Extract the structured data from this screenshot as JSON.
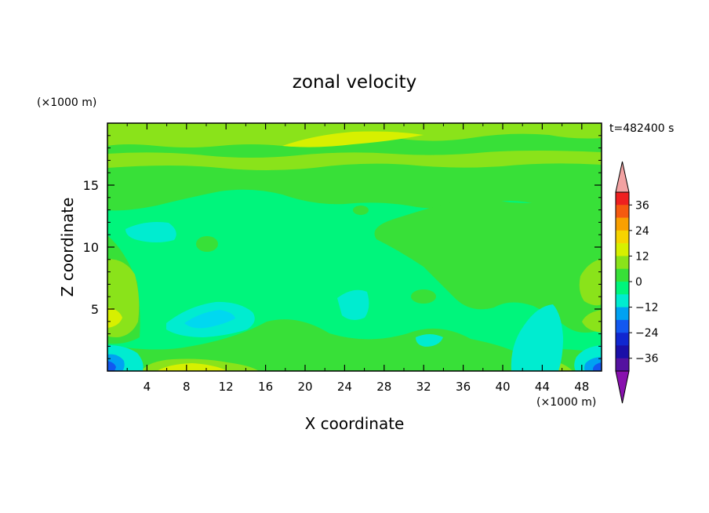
{
  "chart_data": {
    "type": "heatmap",
    "title": "zonal velocity",
    "xlabel": "X coordinate",
    "ylabel": "Z coordinate",
    "x_unit": "(×1000 m)",
    "y_unit": "(×1000 m)",
    "time_label": "t=482400 s",
    "xlim": [
      0,
      50
    ],
    "ylim": [
      0,
      20
    ],
    "x_ticks": [
      4,
      8,
      12,
      16,
      20,
      24,
      28,
      32,
      36,
      40,
      44,
      48
    ],
    "y_ticks": [
      5,
      10,
      15
    ],
    "colorbar": {
      "levels": [
        -42,
        -36,
        -30,
        -24,
        -18,
        -12,
        -6,
        0,
        6,
        12,
        18,
        24,
        30,
        36,
        42
      ],
      "tick_values": [
        36,
        24,
        12,
        0,
        -12,
        -24,
        -36
      ],
      "tick_labels": [
        "36",
        "24",
        "12",
        "0",
        "−12",
        "−24",
        "−36"
      ],
      "colors_high_to_low": [
        "#ee2020",
        "#f55a10",
        "#f9a000",
        "#f6d400",
        "#d7f000",
        "#8ae31a",
        "#38e038",
        "#00f57c",
        "#00ecd0",
        "#00a2f2",
        "#1258f0",
        "#1027d0",
        "#1a0fa8",
        "#5412a0"
      ],
      "over_color": "#f2a2a2",
      "under_color": "#8810ae"
    },
    "field_summary": [
      {
        "region": "top layer (z 17–20)",
        "x_range": [
          0,
          50
        ],
        "value_range": [
          6,
          12
        ]
      },
      {
        "region": "upper band (z 13–17)",
        "x_range": [
          0,
          50
        ],
        "value_range": [
          0,
          6
        ]
      },
      {
        "region": "interior (z 3–13)",
        "x_range": [
          4,
          34
        ],
        "value_range": [
          -6,
          0
        ]
      },
      {
        "region": "cyan patch",
        "x_range": [
          6,
          13
        ],
        "value_range": [
          -12,
          -6
        ]
      },
      {
        "region": "right interior (z 5–12)",
        "x_range": [
          28,
          50
        ],
        "value_range": [
          0,
          6
        ]
      },
      {
        "region": "left margin (z 2–9)",
        "x_range": [
          0,
          4
        ],
        "value_range": [
          6,
          12
        ]
      },
      {
        "region": "surface left (z 0–2)",
        "x_range": [
          0,
          3
        ],
        "value_range": [
          -24,
          -12
        ]
      },
      {
        "region": "surface right (z 0–2)",
        "x_range": [
          48,
          50
        ],
        "value_range": [
          -24,
          -12
        ]
      },
      {
        "region": "near-surface jet (z 0–1)",
        "x_range": [
          4,
          14
        ],
        "value_range": [
          6,
          12
        ]
      },
      {
        "region": "right deep cyan (z 0–6)",
        "x_range": [
          41,
          46
        ],
        "value_range": [
          -12,
          -6
        ]
      }
    ]
  }
}
